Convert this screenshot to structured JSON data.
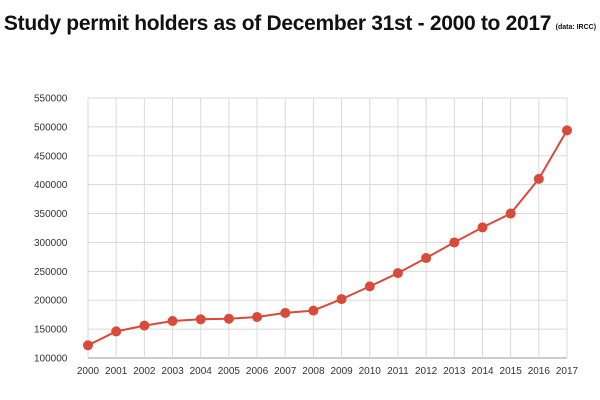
{
  "chart_data": {
    "type": "line",
    "title": "Study permit holders as of December 31st - 2000 to 2017",
    "source_note": "(data: IRCC)",
    "xlabel": "",
    "ylabel": "",
    "x": [
      "2000",
      "2001",
      "2002",
      "2003",
      "2004",
      "2005",
      "2006",
      "2007",
      "2008",
      "2009",
      "2010",
      "2011",
      "2012",
      "2013",
      "2014",
      "2015",
      "2016",
      "2017"
    ],
    "series": [
      {
        "values": [
          122000,
          146000,
          156000,
          164000,
          167000,
          168000,
          171000,
          178000,
          182000,
          202000,
          224000,
          247000,
          273000,
          300000,
          326000,
          350000,
          410000,
          494000
        ],
        "color": "#d94a3b"
      }
    ],
    "y_ticks": [
      "100000",
      "150000",
      "200000",
      "250000",
      "300000",
      "350000",
      "400000",
      "450000",
      "500000",
      "550000"
    ],
    "ylim": [
      100000,
      550000
    ],
    "grid": true,
    "legend": "none"
  }
}
